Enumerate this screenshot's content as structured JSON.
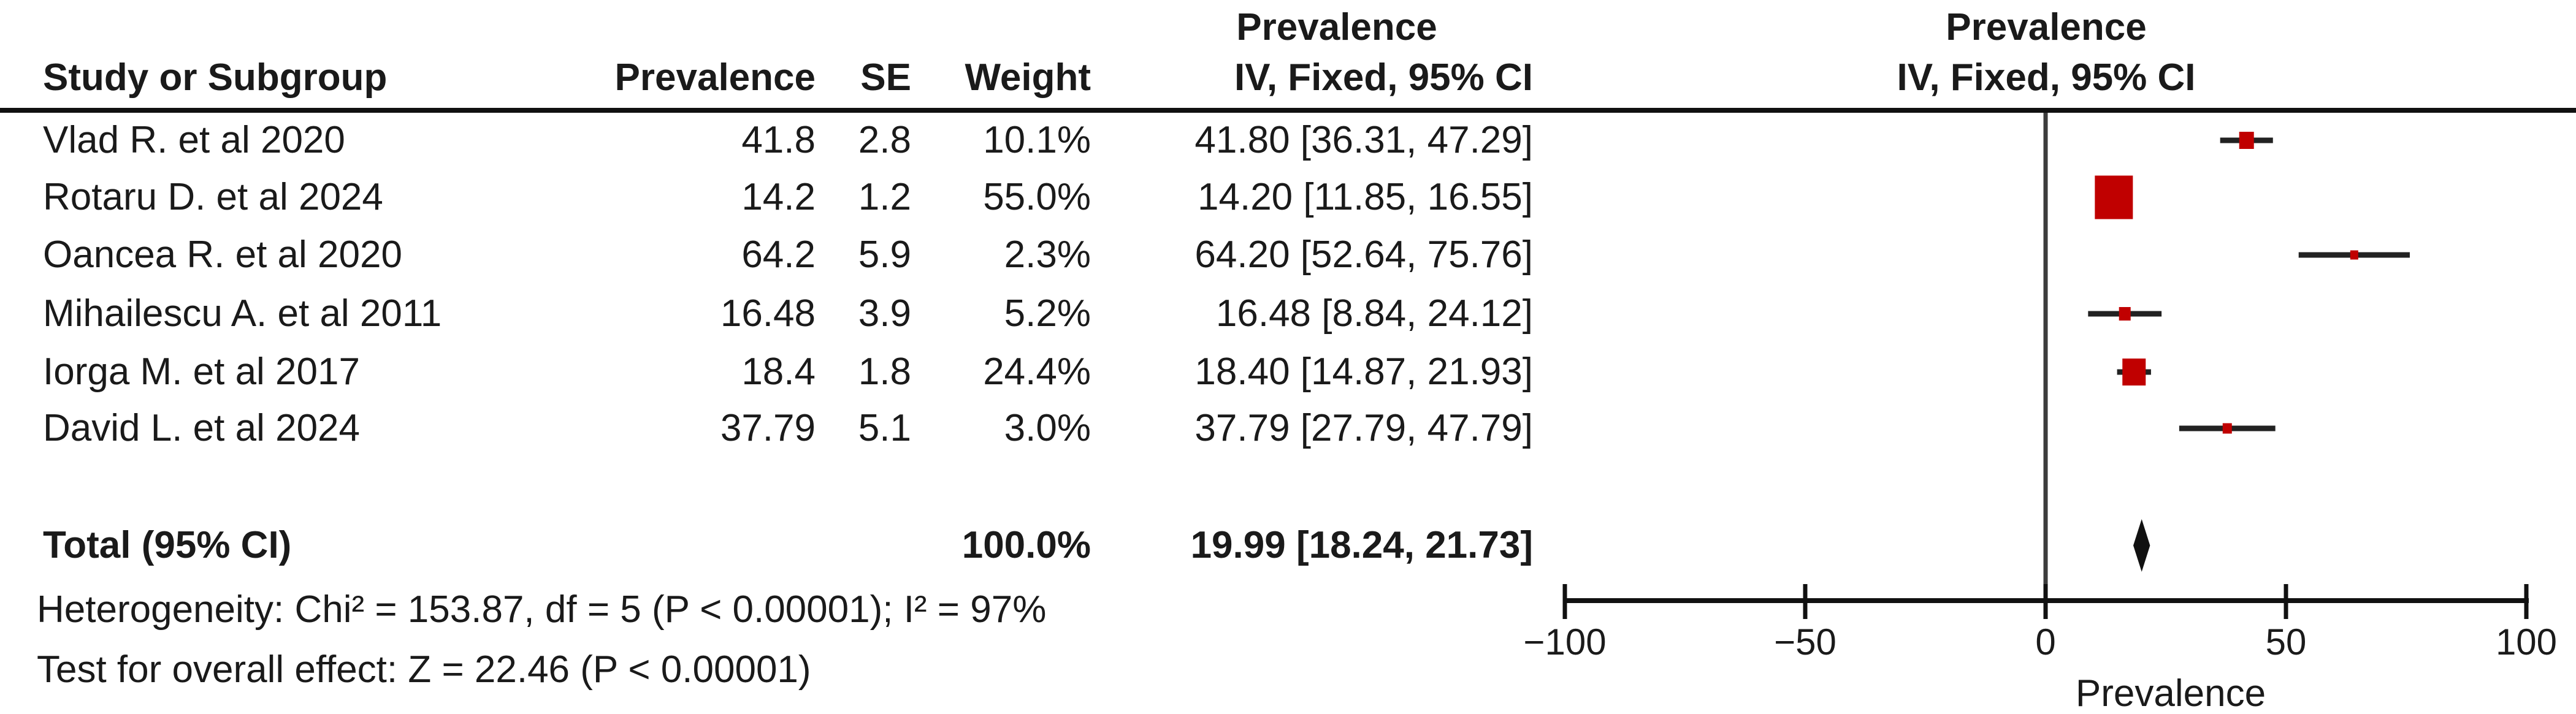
{
  "colors": {
    "square_red": "#c00000",
    "ci_line": "#222222",
    "zero_line": "#3c3c3c",
    "axis": "#111111",
    "text": "#1a1a1a",
    "background": "#ffffff"
  },
  "table": {
    "header_top_effect": "Prevalence",
    "header_top_plot": "Prevalence",
    "headers": {
      "study": "Study or Subgroup",
      "prevalence": "Prevalence",
      "se": "SE",
      "weight": "Weight",
      "ci": "IV, Fixed, 95% CI",
      "plot_ci": "IV, Fixed, 95% CI"
    }
  },
  "footer": {
    "heterogeneity": "Heterogeneity: Chi² = 153.87, df = 5 (P < 0.00001); I² = 97%",
    "overall_effect": "Test for overall effect: Z = 22.46 (P < 0.00001)"
  },
  "chart_data": {
    "type": "forest",
    "effect_measure": "IV, Fixed, 95% CI",
    "xlabel": "Prevalence",
    "xlim": [
      -100,
      100
    ],
    "ticks": [
      -100,
      -50,
      0,
      50,
      100
    ],
    "studies": [
      {
        "name": "Vlad R. et al 2020",
        "prevalence": "41.8",
        "se": "2.8",
        "weight": "10.1%",
        "ci_text": "41.80 [36.31, 47.29]",
        "mean": 41.8,
        "lo": 36.31,
        "hi": 47.29,
        "square": 24
      },
      {
        "name": "Rotaru D. et al 2024",
        "prevalence": "14.2",
        "se": "1.2",
        "weight": "55.0%",
        "ci_text": "14.20 [11.85, 16.55]",
        "mean": 14.2,
        "lo": 11.85,
        "hi": 16.55,
        "square": 62
      },
      {
        "name": "Oancea R. et al 2020",
        "prevalence": "64.2",
        "se": "5.9",
        "weight": "2.3%",
        "ci_text": "64.20 [52.64, 75.76]",
        "mean": 64.2,
        "lo": 52.64,
        "hi": 75.76,
        "square": 13
      },
      {
        "name": "Mihailescu A. et al 2011",
        "prevalence": "16.48",
        "se": "3.9",
        "weight": "5.2%",
        "ci_text": "16.48 [8.84, 24.12]",
        "mean": 16.48,
        "lo": 8.84,
        "hi": 24.12,
        "square": 19
      },
      {
        "name": "Iorga M. et al 2017",
        "prevalence": "18.4",
        "se": "1.8",
        "weight": "24.4%",
        "ci_text": "18.40 [14.87, 21.93]",
        "mean": 18.4,
        "lo": 14.87,
        "hi": 21.93,
        "square": 38
      },
      {
        "name": "David L. et al 2024",
        "prevalence": "37.79",
        "se": "5.1",
        "weight": "3.0%",
        "ci_text": "37.79 [27.79, 47.79]",
        "mean": 37.79,
        "lo": 27.79,
        "hi": 47.79,
        "square": 15
      }
    ],
    "total": {
      "label": "Total (95% CI)",
      "weight": "100.0%",
      "ci_text": "19.99 [18.24, 21.73]",
      "mean": 19.99,
      "lo": 18.24,
      "hi": 21.73
    }
  }
}
